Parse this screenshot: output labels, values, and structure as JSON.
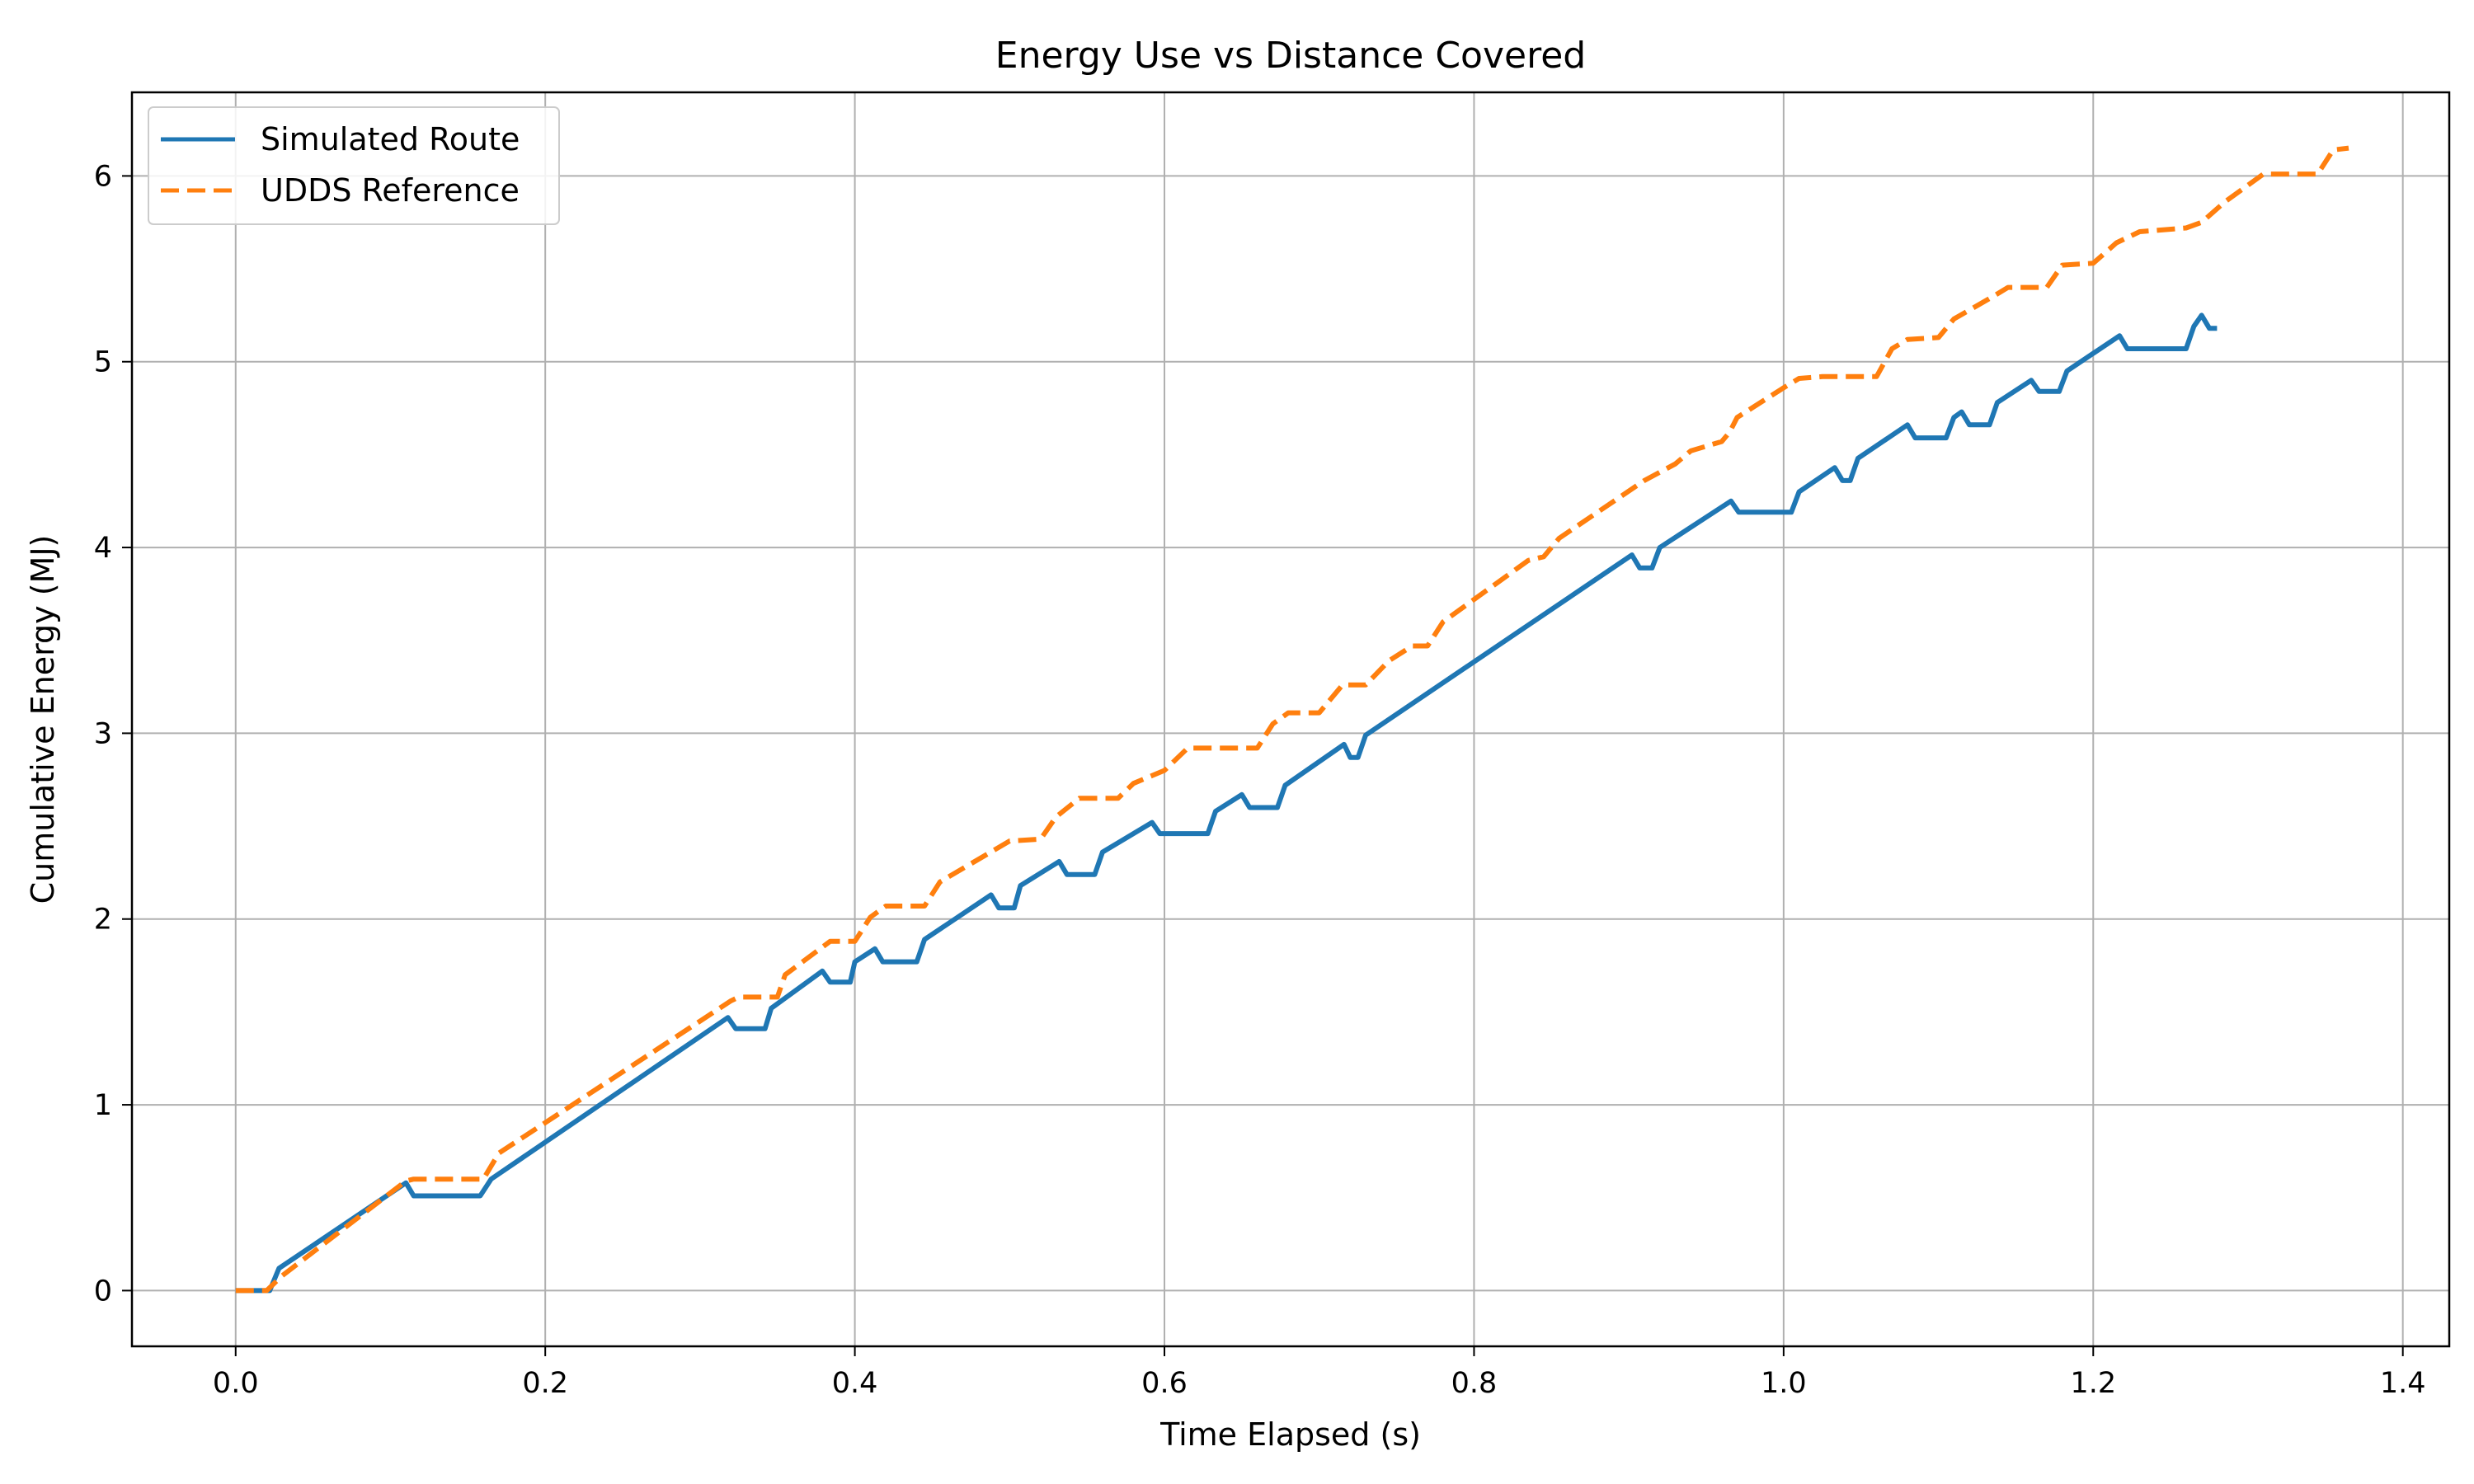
{
  "chart_data": {
    "type": "line",
    "title": "Energy Use vs Distance Covered",
    "xlabel": "Time Elapsed (s)",
    "ylabel": "Cumulative Energy (MJ)",
    "xlim": [
      -0.067,
      1.43
    ],
    "ylim": [
      -0.3,
      6.45
    ],
    "xticks": [
      "0.0",
      "0.2",
      "0.4",
      "0.6",
      "0.8",
      "1.0",
      "1.2",
      "1.4"
    ],
    "yticks": [
      "0",
      "1",
      "2",
      "3",
      "4",
      "5",
      "6"
    ],
    "grid": true,
    "legend_position": "top-left",
    "series": [
      {
        "name": "Simulated Route",
        "color": "#1f77b4",
        "style": "solid",
        "points": [
          [
            0.0,
            0.0
          ],
          [
            0.022,
            0.0
          ],
          [
            0.028,
            0.12
          ],
          [
            0.11,
            0.58
          ],
          [
            0.115,
            0.51
          ],
          [
            0.158,
            0.51
          ],
          [
            0.165,
            0.6
          ],
          [
            0.318,
            1.47
          ],
          [
            0.323,
            1.41
          ],
          [
            0.342,
            1.41
          ],
          [
            0.346,
            1.52
          ],
          [
            0.379,
            1.72
          ],
          [
            0.384,
            1.66
          ],
          [
            0.397,
            1.66
          ],
          [
            0.4,
            1.77
          ],
          [
            0.413,
            1.84
          ],
          [
            0.418,
            1.77
          ],
          [
            0.44,
            1.77
          ],
          [
            0.445,
            1.89
          ],
          [
            0.488,
            2.13
          ],
          [
            0.493,
            2.06
          ],
          [
            0.503,
            2.06
          ],
          [
            0.507,
            2.18
          ],
          [
            0.532,
            2.31
          ],
          [
            0.537,
            2.24
          ],
          [
            0.555,
            2.24
          ],
          [
            0.56,
            2.36
          ],
          [
            0.592,
            2.52
          ],
          [
            0.597,
            2.46
          ],
          [
            0.628,
            2.46
          ],
          [
            0.633,
            2.58
          ],
          [
            0.65,
            2.67
          ],
          [
            0.655,
            2.6
          ],
          [
            0.673,
            2.6
          ],
          [
            0.678,
            2.72
          ],
          [
            0.716,
            2.94
          ],
          [
            0.72,
            2.87
          ],
          [
            0.725,
            2.87
          ],
          [
            0.73,
            2.99
          ],
          [
            0.902,
            3.96
          ],
          [
            0.907,
            3.89
          ],
          [
            0.915,
            3.89
          ],
          [
            0.92,
            4.0
          ],
          [
            0.966,
            4.25
          ],
          [
            0.971,
            4.19
          ],
          [
            1.005,
            4.19
          ],
          [
            1.01,
            4.3
          ],
          [
            1.033,
            4.43
          ],
          [
            1.038,
            4.36
          ],
          [
            1.043,
            4.36
          ],
          [
            1.048,
            4.48
          ],
          [
            1.08,
            4.66
          ],
          [
            1.085,
            4.59
          ],
          [
            1.105,
            4.59
          ],
          [
            1.11,
            4.7
          ],
          [
            1.115,
            4.73
          ],
          [
            1.12,
            4.66
          ],
          [
            1.133,
            4.66
          ],
          [
            1.138,
            4.78
          ],
          [
            1.16,
            4.9
          ],
          [
            1.165,
            4.84
          ],
          [
            1.178,
            4.84
          ],
          [
            1.183,
            4.95
          ],
          [
            1.217,
            5.14
          ],
          [
            1.222,
            5.07
          ],
          [
            1.26,
            5.07
          ],
          [
            1.265,
            5.19
          ],
          [
            1.27,
            5.25
          ],
          [
            1.275,
            5.18
          ],
          [
            1.28,
            5.18
          ]
        ]
      },
      {
        "name": "UDDS Reference",
        "color": "#ff7f0e",
        "style": "dashed",
        "points": [
          [
            0.0,
            0.0
          ],
          [
            0.02,
            0.0
          ],
          [
            0.03,
            0.08
          ],
          [
            0.11,
            0.59
          ],
          [
            0.115,
            0.6
          ],
          [
            0.16,
            0.6
          ],
          [
            0.17,
            0.74
          ],
          [
            0.32,
            1.56
          ],
          [
            0.325,
            1.58
          ],
          [
            0.35,
            1.58
          ],
          [
            0.355,
            1.7
          ],
          [
            0.384,
            1.88
          ],
          [
            0.4,
            1.88
          ],
          [
            0.41,
            2.01
          ],
          [
            0.42,
            2.07
          ],
          [
            0.445,
            2.07
          ],
          [
            0.455,
            2.2
          ],
          [
            0.5,
            2.42
          ],
          [
            0.52,
            2.43
          ],
          [
            0.53,
            2.55
          ],
          [
            0.545,
            2.65
          ],
          [
            0.57,
            2.65
          ],
          [
            0.58,
            2.73
          ],
          [
            0.6,
            2.8
          ],
          [
            0.615,
            2.92
          ],
          [
            0.66,
            2.92
          ],
          [
            0.67,
            3.05
          ],
          [
            0.68,
            3.11
          ],
          [
            0.7,
            3.11
          ],
          [
            0.715,
            3.26
          ],
          [
            0.73,
            3.26
          ],
          [
            0.745,
            3.39
          ],
          [
            0.76,
            3.47
          ],
          [
            0.77,
            3.47
          ],
          [
            0.78,
            3.6
          ],
          [
            0.835,
            3.93
          ],
          [
            0.845,
            3.95
          ],
          [
            0.855,
            4.05
          ],
          [
            0.91,
            4.36
          ],
          [
            0.93,
            4.45
          ],
          [
            0.94,
            4.52
          ],
          [
            0.96,
            4.57
          ],
          [
            0.965,
            4.62
          ],
          [
            0.97,
            4.7
          ],
          [
            1.0,
            4.86
          ],
          [
            1.01,
            4.91
          ],
          [
            1.025,
            4.92
          ],
          [
            1.06,
            4.92
          ],
          [
            1.07,
            5.07
          ],
          [
            1.08,
            5.12
          ],
          [
            1.1,
            5.13
          ],
          [
            1.11,
            5.23
          ],
          [
            1.135,
            5.35
          ],
          [
            1.145,
            5.4
          ],
          [
            1.17,
            5.4
          ],
          [
            1.18,
            5.52
          ],
          [
            1.2,
            5.53
          ],
          [
            1.215,
            5.64
          ],
          [
            1.23,
            5.7
          ],
          [
            1.26,
            5.72
          ],
          [
            1.27,
            5.75
          ],
          [
            1.285,
            5.86
          ],
          [
            1.31,
            6.01
          ],
          [
            1.345,
            6.01
          ],
          [
            1.355,
            6.14
          ],
          [
            1.365,
            6.15
          ]
        ]
      }
    ]
  }
}
